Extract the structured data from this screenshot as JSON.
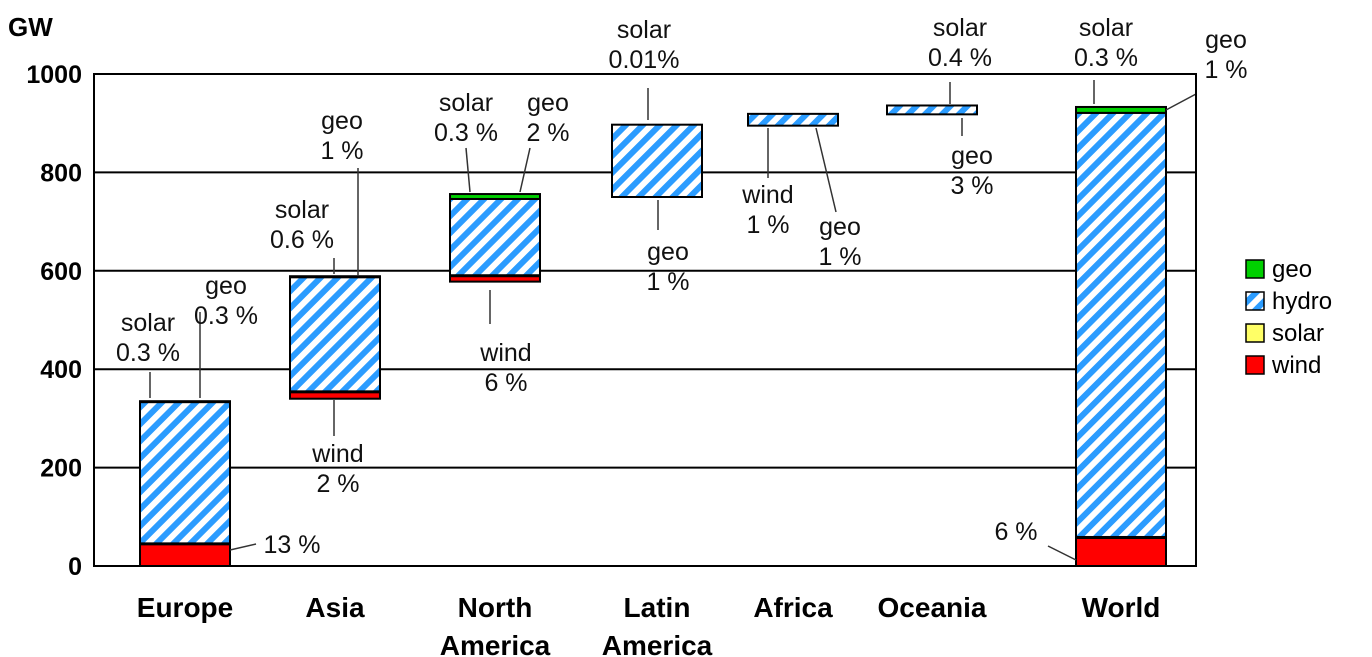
{
  "chart_data": {
    "type": "bar",
    "ylabel": "GW",
    "ylim": [
      0,
      1000
    ],
    "yticks": [
      0,
      200,
      400,
      600,
      800,
      1000
    ],
    "grid": true,
    "legend_position": "right",
    "categories": [
      [
        "Europe"
      ],
      [
        "Asia"
      ],
      [
        "North",
        "America"
      ],
      [
        "Latin",
        "America"
      ],
      [
        "Africa"
      ],
      [
        "Oceania"
      ],
      [
        "World"
      ]
    ],
    "series": [
      {
        "name": "wind",
        "color": "#ff0000",
        "pattern": "solid",
        "starts": [
          0,
          340,
          578,
          750,
          895,
          918,
          0
        ],
        "values": [
          45,
          14,
          12,
          0,
          0,
          0,
          57
        ]
      },
      {
        "name": "solar",
        "color": "#ffff66",
        "pattern": "solid",
        "starts": [
          45,
          354,
          590,
          750,
          895,
          918,
          57
        ],
        "values": [
          1,
          1,
          1,
          0,
          0,
          0,
          2
        ]
      },
      {
        "name": "hydro",
        "color": "#2b9cff",
        "pattern": "striped",
        "starts": [
          46,
          355,
          591,
          750,
          895,
          918,
          59
        ],
        "values": [
          288,
          232,
          155,
          147,
          24,
          18,
          862
        ]
      },
      {
        "name": "geo",
        "color": "#00d000",
        "pattern": "solid",
        "starts": [
          334,
          587,
          746,
          897,
          919,
          936,
          921
        ],
        "values": [
          1,
          2,
          10,
          0,
          0,
          0,
          12
        ]
      }
    ],
    "legend": [
      "geo",
      "hydro",
      "solar",
      "wind"
    ],
    "annotations": [
      {
        "lines": [
          "solar",
          "0.3 %"
        ],
        "bar": 0,
        "value": 334
      },
      {
        "lines": [
          "geo",
          "0.3 %"
        ],
        "bar": 0,
        "value": 334
      },
      {
        "lines": [
          "13 %"
        ],
        "bar": 0,
        "value": 25
      },
      {
        "lines": [
          "solar",
          "0.6 %"
        ],
        "bar": 1,
        "value": 587
      },
      {
        "lines": [
          "geo",
          "1 %"
        ],
        "bar": 1,
        "value": 587
      },
      {
        "lines": [
          "wind",
          "2 %"
        ],
        "bar": 1,
        "value": 345
      },
      {
        "lines": [
          "solar",
          "0.3 %"
        ],
        "bar": 2,
        "value": 754
      },
      {
        "lines": [
          "geo",
          "2 %"
        ],
        "bar": 2,
        "value": 754
      },
      {
        "lines": [
          "wind",
          "6 %"
        ],
        "bar": 2,
        "value": 582
      },
      {
        "lines": [
          "solar",
          "0.01%"
        ],
        "bar": 3,
        "value": 897
      },
      {
        "lines": [
          "geo",
          "1 %"
        ],
        "bar": 3,
        "value": 750
      },
      {
        "lines": [
          "wind",
          "1 %"
        ],
        "bar": 4,
        "value": 905
      },
      {
        "lines": [
          "geo",
          "1 %"
        ],
        "bar": 4,
        "value": 905
      },
      {
        "lines": [
          "solar",
          "0.4 %"
        ],
        "bar": 5,
        "value": 936
      },
      {
        "lines": [
          "geo",
          "3 %"
        ],
        "bar": 5,
        "value": 918
      },
      {
        "lines": [
          "solar",
          "0.3 %"
        ],
        "bar": 6,
        "value": 933
      },
      {
        "lines": [
          "geo",
          "1 %"
        ],
        "bar": 6,
        "value": 930
      },
      {
        "lines": [
          "6 %"
        ],
        "bar": 6,
        "value": 20
      }
    ]
  }
}
